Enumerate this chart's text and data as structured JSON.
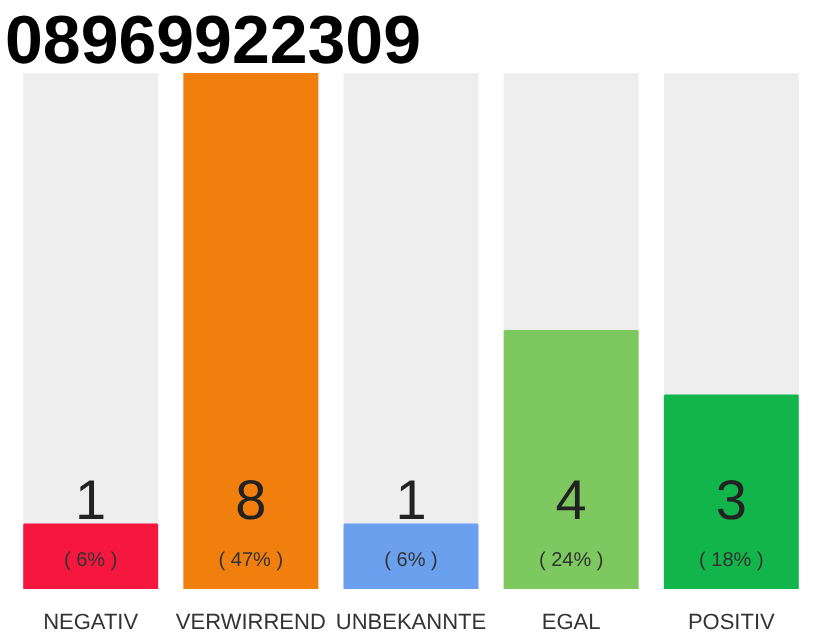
{
  "chart_data": {
    "type": "bar",
    "title": "08969922309",
    "categories": [
      "NEGATIV",
      "VERWIRREND",
      "UNBEKANNTE",
      "EGAL",
      "POSITIV"
    ],
    "values": [
      1,
      8,
      1,
      4,
      3
    ],
    "colors": [
      "#f5173e",
      "#f17f0d",
      "#6aa0ee",
      "#7ec95f",
      "#12b54a"
    ],
    "data_labels": true,
    "annotations": [
      "( 6% )",
      "( 47% )",
      "( 6% )",
      "( 24% )",
      "( 18% )"
    ],
    "ylim": [
      0,
      8
    ],
    "tick_labels": "x"
  }
}
